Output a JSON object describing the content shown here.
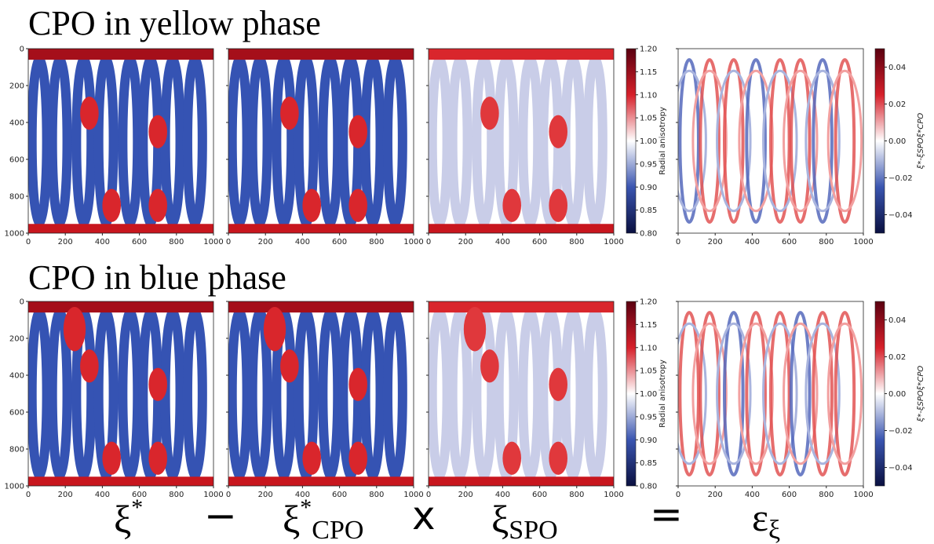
{
  "rows": [
    {
      "title": "CPO in yellow phase"
    },
    {
      "title": "CPO in blue phase"
    }
  ],
  "panel_axes": {
    "xticks": [
      0,
      200,
      400,
      600,
      800,
      1000
    ],
    "yticks": [
      0,
      200,
      400,
      600,
      800,
      1000
    ]
  },
  "colorbars": [
    {
      "label": "Radial anisotropy",
      "ticks": [
        "1.20",
        "1.15",
        "1.10",
        "1.05",
        "1.00",
        "0.95",
        "0.90",
        "0.85",
        "0.80"
      ]
    },
    {
      "label": "ξ*-ξSPOξ*CPO",
      "ticks": [
        "0.04",
        "0.02",
        "0.00",
        "−0.02",
        "−0.04"
      ]
    }
  ],
  "equation": {
    "term1": {
      "base": "ξ",
      "sup": "*"
    },
    "minus": "−",
    "term2": {
      "base": "ξ",
      "sup": "*",
      "sub": "CPO"
    },
    "times": "x",
    "term3": {
      "base": "ξ",
      "sub": "SPO"
    },
    "equals": "=",
    "result": {
      "base": "ε",
      "sub": "ξ"
    }
  }
}
